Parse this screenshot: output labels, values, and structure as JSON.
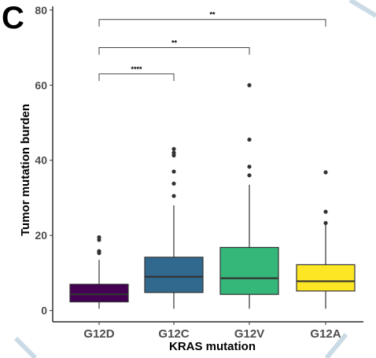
{
  "panel_label": "C",
  "chart_data": {
    "type": "box",
    "xlabel": "KRAS mutation",
    "ylabel": "Tumor mutation burden",
    "ylim": [
      -3,
      81
    ],
    "yticks": [
      0,
      20,
      40,
      60,
      80
    ],
    "grid": false,
    "legend": "none",
    "categories": [
      "G12D",
      "G12C",
      "G12V",
      "G12A"
    ],
    "boxes": [
      {
        "category": "G12D",
        "color": "#440154",
        "whisker_low": 0.5,
        "q1": 2.3,
        "median": 4.3,
        "q3": 7.0,
        "whisker_high": 13.5,
        "outliers": [
          15.3,
          15.8,
          18.8,
          19.5
        ]
      },
      {
        "category": "G12C",
        "color": "#31688e",
        "whisker_low": 0.5,
        "q1": 4.8,
        "median": 9.0,
        "q3": 14.2,
        "whisker_high": 28.0,
        "outliers": [
          30.5,
          33.8,
          37.0,
          41.3,
          42.0,
          43.0
        ]
      },
      {
        "category": "G12V",
        "color": "#35b779",
        "whisker_low": 0.5,
        "q1": 4.3,
        "median": 8.6,
        "q3": 16.8,
        "whisker_high": 33.5,
        "outliers": [
          36.0,
          38.3,
          45.5,
          60.0
        ]
      },
      {
        "category": "G12A",
        "color": "#fde725",
        "whisker_low": 0.5,
        "q1": 5.2,
        "median": 7.8,
        "q3": 12.2,
        "whisker_high": 23.0,
        "outliers": [
          23.3,
          26.3,
          36.8
        ]
      }
    ],
    "significance": [
      {
        "from": "G12D",
        "to": "G12C",
        "y": 63,
        "label": "****"
      },
      {
        "from": "G12D",
        "to": "G12V",
        "y": 70,
        "label": "**"
      },
      {
        "from": "G12D",
        "to": "G12A",
        "y": 77.5,
        "label": "**"
      }
    ]
  }
}
